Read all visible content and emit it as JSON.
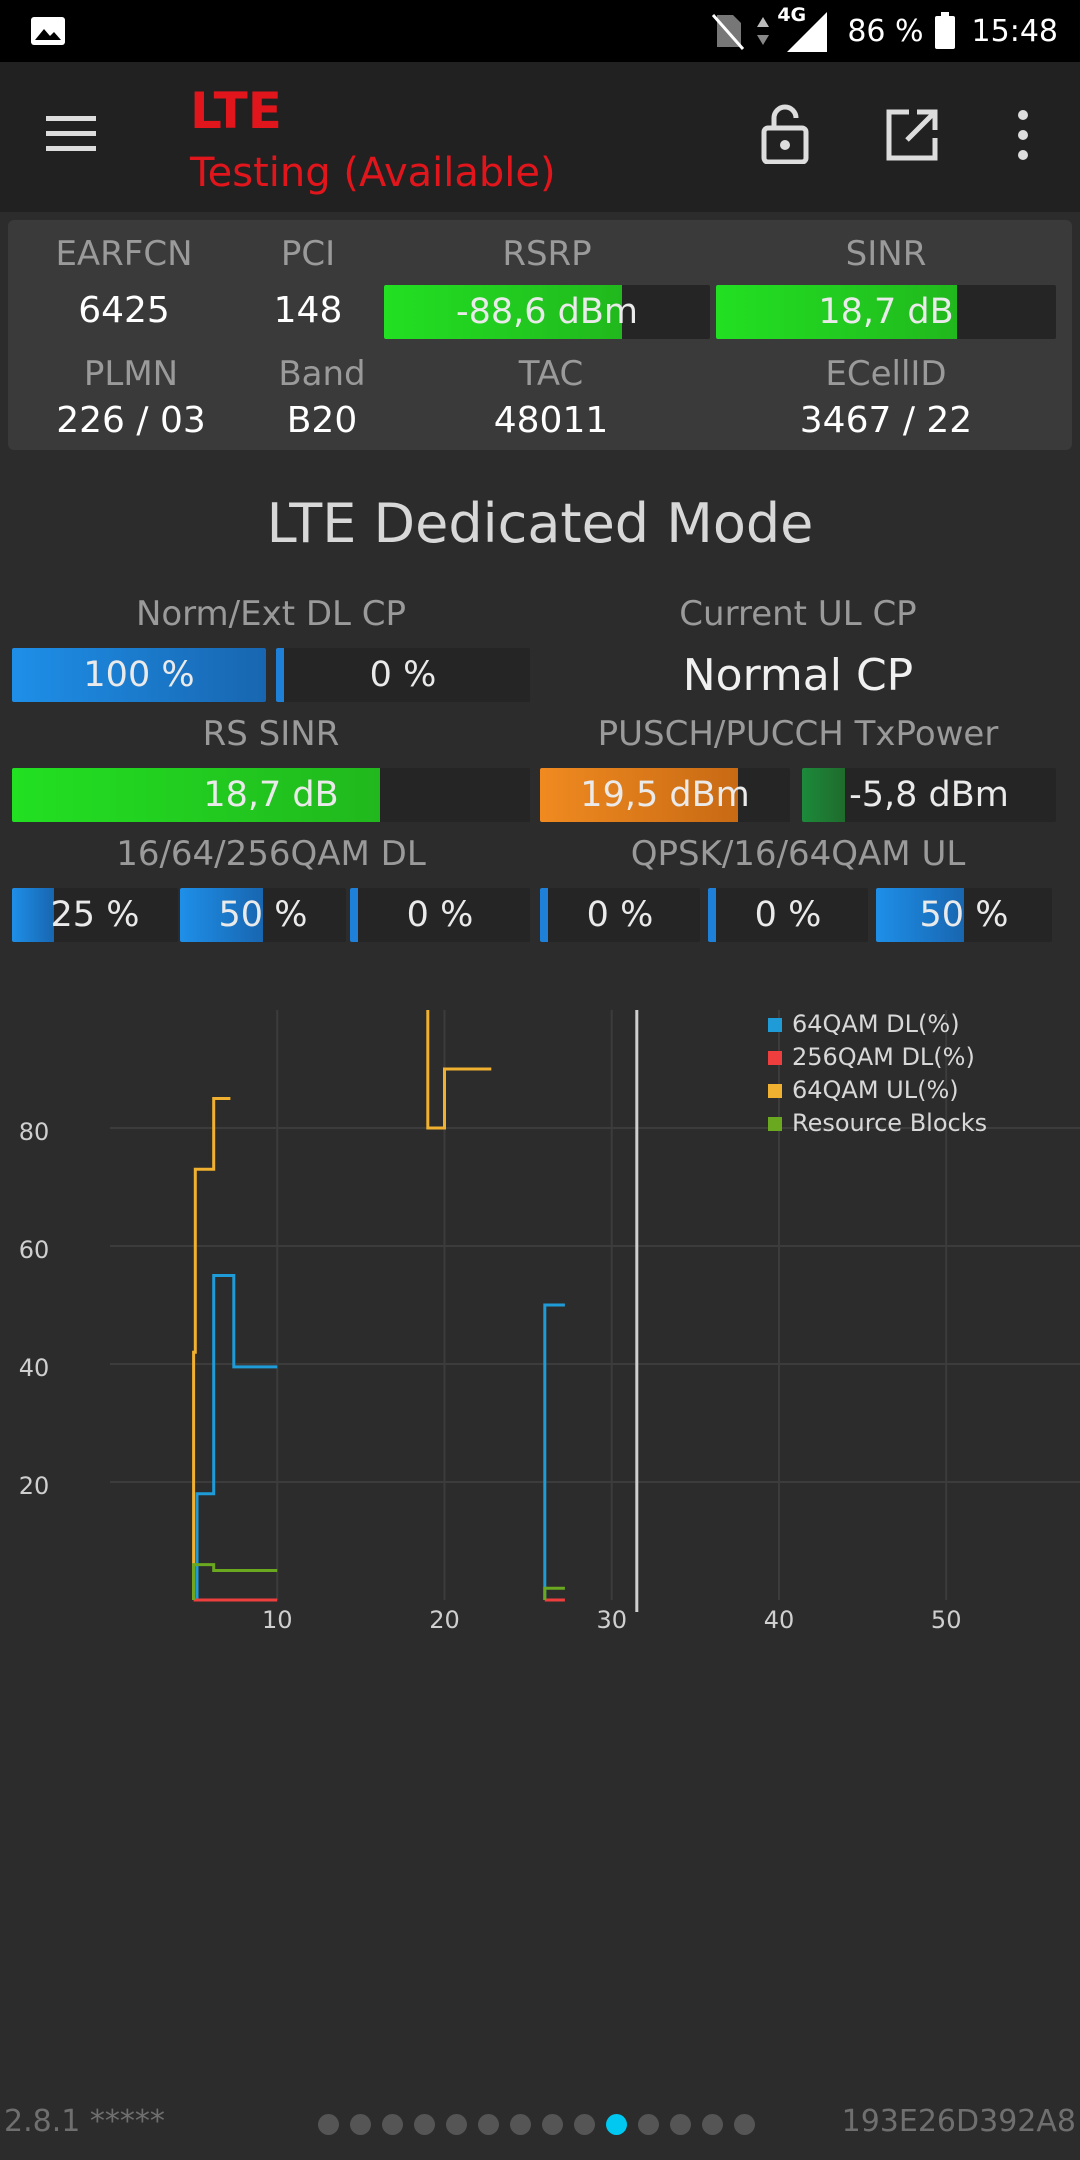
{
  "status_bar": {
    "network": "4G",
    "battery": "86 %",
    "time": "15:48"
  },
  "app_bar": {
    "title": "LTE",
    "subtitle": "Testing (Available)"
  },
  "info": {
    "earfcn_label": "EARFCN",
    "earfcn": "6425",
    "pci_label": "PCI",
    "pci": "148",
    "rsrp_label": "RSRP",
    "rsrp": "-88,6 dBm",
    "rsrp_level": 0.73,
    "sinr_label": "SINR",
    "sinr": "18,7 dB",
    "sinr_level": 0.71,
    "plmn_label": "PLMN",
    "plmn": "226 / 03",
    "band_label": "Band",
    "band": "B20",
    "tac_label": "TAC",
    "tac": "48011",
    "ecellid_label": "ECellID",
    "ecellid": "3467 / 22"
  },
  "dedicated": {
    "title": "LTE Dedicated Mode",
    "cp_dl_label": "Norm/Ext DL CP",
    "cp_dl_norm": "100 %",
    "cp_dl_norm_level": 1.0,
    "cp_dl_ext": "0 %",
    "cp_dl_ext_level": 0.0,
    "ul_cp_label": "Current UL CP",
    "ul_cp": "Normal CP",
    "rs_sinr_label": "RS SINR",
    "rs_sinr": "18,7 dB",
    "rs_sinr_level": 0.71,
    "txpower_label": "PUSCH/PUCCH TxPower",
    "pusch": "19,5 dBm",
    "pusch_level": 0.79,
    "pucch": "-5,8 dBm",
    "pucch_level": 0.17,
    "qam_dl_label": "16/64/256QAM DL",
    "qam16_dl": "25 %",
    "qam16_dl_level": 0.25,
    "qam64_dl": "50 %",
    "qam64_dl_level": 0.5,
    "qam256_dl": "0 %",
    "qam256_dl_level": 0.0,
    "qam_ul_label": "QPSK/16/64QAM UL",
    "qpsk_ul": "0 %",
    "qpsk_ul_level": 0.0,
    "qam16_ul": "0 %",
    "qam16_ul_level": 0.0,
    "qam64_ul": "50 %",
    "qam64_ul_level": 0.5
  },
  "chart_data": {
    "type": "line",
    "x_ticks": [
      "10",
      "20",
      "30",
      "40",
      "50"
    ],
    "y_ticks": [
      "20",
      "40",
      "60",
      "80"
    ],
    "xlim": [
      0,
      58
    ],
    "ylim": [
      0,
      100
    ],
    "cursor_x": 31.5,
    "grid": true,
    "legend_position": "top-right",
    "series": [
      {
        "name": "64QAM DL(%)",
        "color": "#1f9bd8",
        "points": [
          [
            5.2,
            0
          ],
          [
            5.2,
            18
          ],
          [
            6.2,
            18
          ],
          [
            6.2,
            55
          ],
          [
            7.4,
            55
          ],
          [
            7.4,
            39.5
          ],
          [
            10,
            39.5
          ]
        ],
        "points2": [
          [
            26,
            0
          ],
          [
            26,
            50
          ],
          [
            27.2,
            50
          ]
        ]
      },
      {
        "name": "256QAM DL(%)",
        "color": "#ef3e3e",
        "points": [
          [
            5,
            0
          ],
          [
            10,
            0
          ]
        ],
        "points2": [
          [
            26,
            0
          ],
          [
            27.2,
            0
          ]
        ]
      },
      {
        "name": "64QAM UL(%)",
        "color": "#f0b030",
        "points": [
          [
            5,
            0
          ],
          [
            5,
            42
          ],
          [
            5.1,
            42
          ],
          [
            5.1,
            73
          ],
          [
            6.2,
            73
          ],
          [
            6.2,
            85
          ],
          [
            7.2,
            85
          ]
        ],
        "points2": [
          [
            19,
            100
          ],
          [
            19,
            80
          ],
          [
            20,
            80
          ],
          [
            20,
            90
          ],
          [
            22.8,
            90
          ]
        ]
      },
      {
        "name": "Resource Blocks",
        "color": "#6aa820",
        "points": [
          [
            5,
            0
          ],
          [
            5,
            6
          ],
          [
            6.2,
            6
          ],
          [
            6.2,
            5
          ],
          [
            10,
            5
          ]
        ],
        "points2": [
          [
            26,
            0
          ],
          [
            26,
            2
          ],
          [
            27.2,
            2
          ]
        ]
      }
    ]
  },
  "footer": {
    "version": "2.8.1 *****",
    "device_id": "193E26D392A8",
    "page_count": 14,
    "active_page": 9
  }
}
